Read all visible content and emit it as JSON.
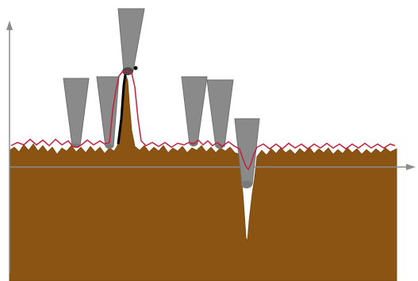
{
  "figure": {
    "description_visible_text": "",
    "colors": {
      "background": "#ffffff",
      "sample": "#8b5413",
      "sample_edge": "#7a4a10",
      "axis": "#8c8c8c",
      "tip": "#8a8a8a",
      "tip_edge": "#6e6e6e",
      "trace": "#c0203a",
      "tip_apex": "#4a4a4a",
      "tip_point": "#000000"
    },
    "icons": [
      "arrow-up-icon",
      "arrow-right-icon"
    ],
    "elements": {
      "tips": [
        "tip-1",
        "tip-2",
        "tip-3",
        "tip-4",
        "tip-5",
        "tip-6"
      ],
      "features": [
        "surface-spike",
        "surface-pit"
      ]
    }
  }
}
